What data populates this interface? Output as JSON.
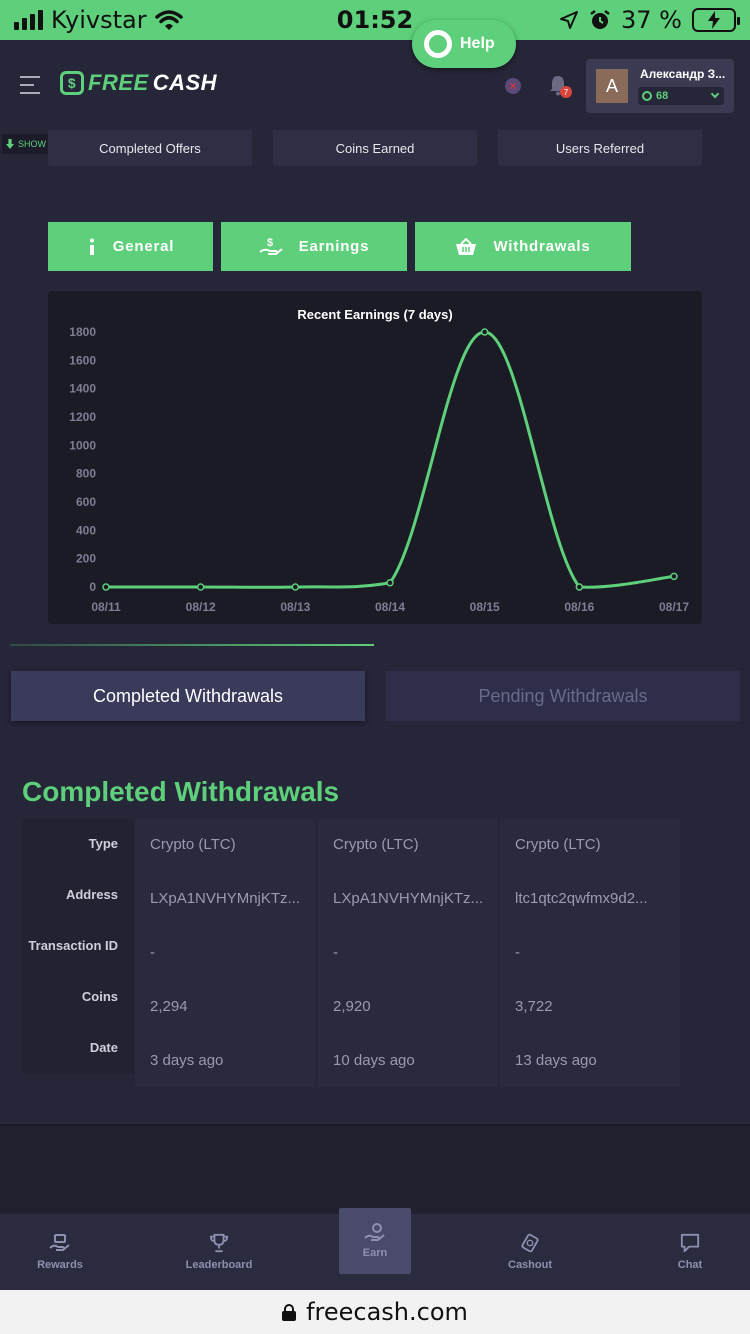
{
  "status_bar": {
    "carrier": "Kyivstar",
    "time": "01:52",
    "battery": "37 %"
  },
  "header": {
    "logo_free": "FREE",
    "logo_cash": "CASH",
    "help_label": "Help",
    "notification_count": "7",
    "user_initial": "A",
    "user_name": "Александр З...",
    "user_coins": "68"
  },
  "live_stats_label": "SHOW LIVE STATS",
  "stats_cards": [
    "Completed Offers",
    "Coins Earned",
    "Users Referred"
  ],
  "tabs": [
    {
      "label": "General",
      "icon": "info-icon"
    },
    {
      "label": "Earnings",
      "icon": "money-hand-icon"
    },
    {
      "label": "Withdrawals",
      "icon": "basket-icon"
    }
  ],
  "chart_data": {
    "type": "line",
    "title": "Recent Earnings (7 days)",
    "categories": [
      "08/11",
      "08/12",
      "08/13",
      "08/14",
      "08/15",
      "08/16",
      "08/17"
    ],
    "values": [
      0,
      0,
      0,
      30,
      1800,
      0,
      75
    ],
    "ylim": [
      0,
      1800
    ],
    "yticks": [
      0,
      200,
      400,
      600,
      800,
      1000,
      1200,
      1400,
      1600,
      1800
    ],
    "line_color": "#5ecf7a",
    "grid": false
  },
  "withdrawal_tabs": {
    "completed": "Completed Withdrawals",
    "pending": "Pending Withdrawals"
  },
  "section_title": "Completed Withdrawals",
  "withdrawals": {
    "labels": [
      "Type",
      "Address",
      "Transaction ID",
      "Coins",
      "Date"
    ],
    "rows": [
      {
        "type": "Crypto (LTC)",
        "address": "LXpA1NVHYMnjKTz...",
        "txid": "-",
        "coins": "2,294",
        "date": "3 days ago"
      },
      {
        "type": "Crypto (LTC)",
        "address": "LXpA1NVHYMnjKTz...",
        "txid": "-",
        "coins": "2,920",
        "date": "10 days ago"
      },
      {
        "type": "Crypto (LTC)",
        "address": "ltc1qtc2qwfmx9d2...",
        "txid": "-",
        "coins": "3,722",
        "date": "13 days ago"
      }
    ]
  },
  "bottom_nav": [
    {
      "label": "Rewards",
      "icon": "rewards-icon"
    },
    {
      "label": "Leaderboard",
      "icon": "trophy-icon"
    },
    {
      "label": "Earn",
      "icon": "earn-icon"
    },
    {
      "label": "Cashout",
      "icon": "cashout-icon"
    },
    {
      "label": "Chat",
      "icon": "chat-icon"
    }
  ],
  "url": "freecash.com",
  "colors": {
    "accent": "#5ecf7a",
    "background": "#262639",
    "chart_bg": "#1b1b26"
  }
}
